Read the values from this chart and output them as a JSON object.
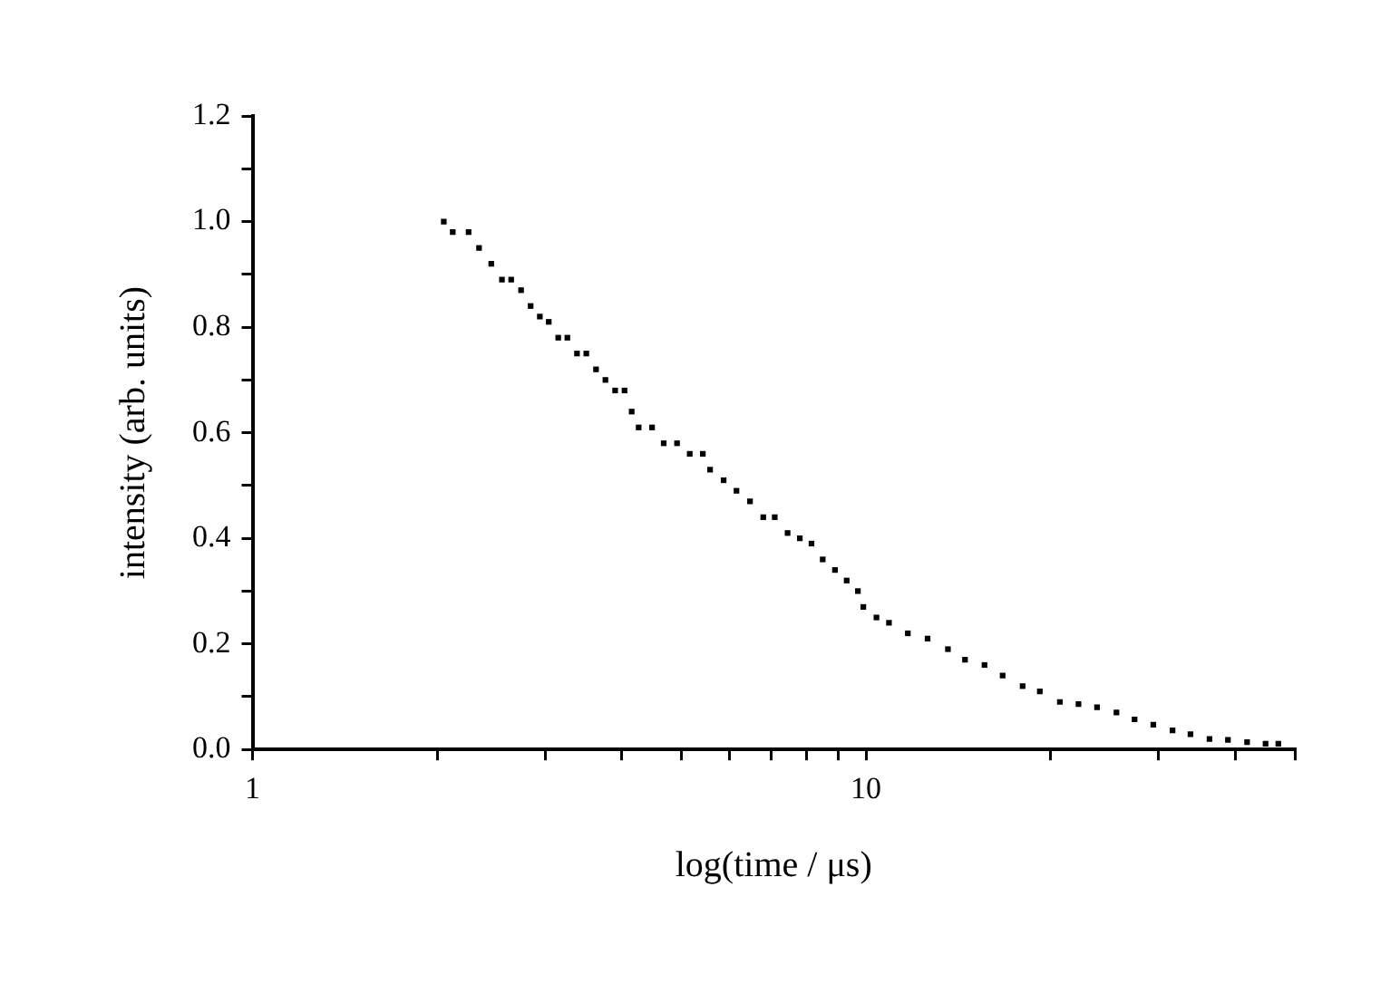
{
  "chart_data": {
    "type": "scatter",
    "xlabel": "log(time / μs)",
    "ylabel": "intensity (arb. units)",
    "log": "x",
    "marker": "square",
    "xlim": [
      1,
      50
    ],
    "xticks": [
      1,
      {
        "value": 2,
        "label": null
      },
      {
        "value": 3,
        "label": null
      },
      {
        "value": 4,
        "label": null
      },
      {
        "value": 5,
        "label": null
      },
      {
        "value": 6,
        "label": null
      },
      {
        "value": 7,
        "label": null
      },
      {
        "value": 8,
        "label": null
      },
      {
        "value": 9,
        "label": null
      },
      10,
      {
        "value": 20,
        "label": null
      },
      {
        "value": 30,
        "label": null
      },
      {
        "value": 40,
        "label": null
      },
      {
        "value": 50,
        "label": null
      }
    ],
    "ylim": [
      0,
      1.2
    ],
    "yticks": [
      {
        "value": 0,
        "label": "0.0"
      },
      {
        "value": 0.1,
        "label": null
      },
      0.2,
      {
        "value": 0.3,
        "label": null
      },
      0.4,
      {
        "value": 0.5,
        "label": null
      },
      0.6,
      {
        "value": 0.7,
        "label": null
      },
      0.8,
      {
        "value": 0.9,
        "label": null
      },
      {
        "value": 1,
        "label": "1.0"
      },
      {
        "value": 1.1,
        "label": null
      },
      1.2
    ],
    "x": [
      2.05,
      2.12,
      2.25,
      2.34,
      2.45,
      2.55,
      2.64,
      2.74,
      2.84,
      2.94,
      3.04,
      3.15,
      3.26,
      3.38,
      3.5,
      3.63,
      3.76,
      3.9,
      4.04,
      4.15,
      4.26,
      4.48,
      4.68,
      4.92,
      5.16,
      5.42,
      5.57,
      5.86,
      6.15,
      6.47,
      6.8,
      7.1,
      7.45,
      7.8,
      8.15,
      8.5,
      8.9,
      9.3,
      9.7,
      9.9,
      10.4,
      10.9,
      11.7,
      12.6,
      13.6,
      14.5,
      15.6,
      16.7,
      18.0,
      19.2,
      20.7,
      22.2,
      23.8,
      25.6,
      27.4,
      29.4,
      31.6,
      33.8,
      36.3,
      38.9,
      41.8,
      44.8,
      47.0
    ],
    "series": [
      {
        "color": "#000000",
        "values": [
          1.0,
          0.98,
          0.98,
          0.95,
          0.92,
          0.89,
          0.89,
          0.87,
          0.84,
          0.82,
          0.81,
          0.78,
          0.78,
          0.75,
          0.75,
          0.72,
          0.7,
          0.68,
          0.68,
          0.64,
          0.61,
          0.61,
          0.58,
          0.58,
          0.56,
          0.56,
          0.53,
          0.51,
          0.49,
          0.47,
          0.44,
          0.44,
          0.41,
          0.4,
          0.39,
          0.36,
          0.34,
          0.32,
          0.3,
          0.27,
          0.25,
          0.24,
          0.22,
          0.21,
          0.19,
          0.17,
          0.16,
          0.14,
          0.12,
          0.11,
          0.09,
          0.086,
          0.08,
          0.07,
          0.057,
          0.047,
          0.036,
          0.029,
          0.02,
          0.018,
          0.014,
          0.011,
          0.011
        ]
      }
    ]
  }
}
